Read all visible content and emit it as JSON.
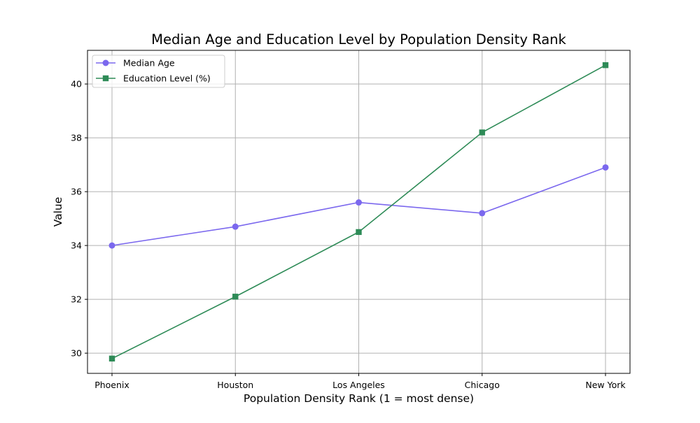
{
  "chart_data": {
    "type": "line",
    "title": "Median Age and Education Level by Population Density Rank",
    "xlabel": "Population Density Rank (1 = most dense)",
    "ylabel": "Value",
    "categories": [
      "Phoenix",
      "Houston",
      "Los Angeles",
      "Chicago",
      "New York"
    ],
    "ylim": [
      29.25,
      41.25
    ],
    "yticks": [
      30,
      32,
      34,
      36,
      38,
      40
    ],
    "grid": true,
    "legend_position": "top-left",
    "series": [
      {
        "name": "Median Age",
        "values": [
          34.0,
          34.7,
          35.6,
          35.2,
          36.9
        ],
        "color": "#7b68ee",
        "marker": "circle"
      },
      {
        "name": "Education Level (%)",
        "values": [
          29.8,
          32.1,
          34.5,
          38.2,
          40.7
        ],
        "color": "#2e8b57",
        "marker": "square"
      }
    ]
  }
}
